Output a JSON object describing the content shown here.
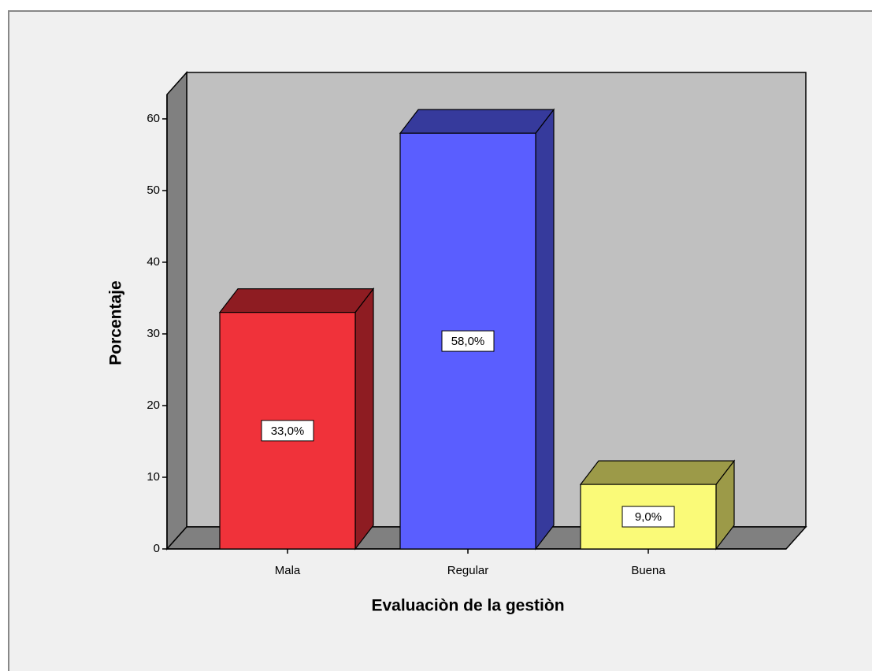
{
  "chart_data": {
    "type": "bar3d",
    "x_label": "Evaluaciòn de la gestiòn",
    "y_label": "Porcentaje",
    "categories": [
      "Mala",
      "Regular",
      "Buena"
    ],
    "values": [
      33,
      58,
      9
    ],
    "value_labels": [
      "33,0%",
      "58,0%",
      "9,0%"
    ],
    "colors": [
      "#f0323a",
      "#5a5eff",
      "#fafa78"
    ],
    "side_colors": [
      "#8e1c22",
      "#363a9c",
      "#9c9a48"
    ],
    "ylim": [
      0,
      63.4
    ],
    "yticks": [
      0,
      10,
      20,
      30,
      40,
      50,
      60
    ]
  }
}
